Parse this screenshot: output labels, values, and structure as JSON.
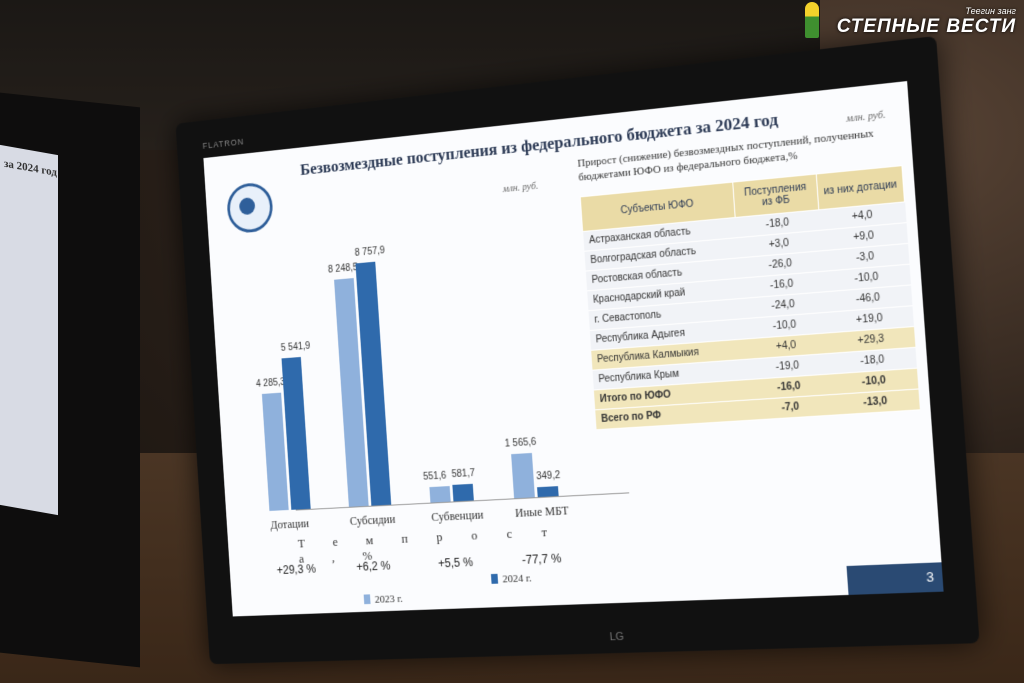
{
  "slide": {
    "title": "Безвозмездные поступления из федерального бюджета за 2024 год",
    "unit_left": "млн. руб.",
    "unit_right": "млн. руб.",
    "page_number": "3"
  },
  "chart_data": {
    "type": "bar",
    "categories": [
      "Дотации",
      "Субсидии",
      "Субвенции",
      "Иные МБТ"
    ],
    "series": [
      {
        "name": "2023 г.",
        "values": [
          4285.3,
          8248.5,
          551.6,
          1565.6
        ],
        "labels": [
          "4 285,3",
          "8 248,5",
          "551,6",
          "1 565,6"
        ],
        "color": "#8fb1dc"
      },
      {
        "name": "2024 г.",
        "values": [
          5541.9,
          8757.9,
          581.7,
          349.2
        ],
        "labels": [
          "5 541,9",
          "8 757,9",
          "581,7",
          "349,2"
        ],
        "color": "#2f6aac"
      }
    ],
    "ylim": [
      0,
      9000
    ],
    "growth_label": "Т е м п   р о с т а ,   %",
    "growth": [
      "+29,3 %",
      "+6,2 %",
      "+5,5 %",
      "-77,7 %"
    ]
  },
  "table": {
    "title": "Прирост (снижение) безвозмездных поступлений, полученных бюджетами ЮФО из федерального бюджета,%",
    "headers": [
      "Субъекты ЮФО",
      "Поступления из ФБ",
      "из них дотации"
    ],
    "rows": [
      [
        "Астраханская область",
        "-18,0",
        "+4,0"
      ],
      [
        "Волгоградская область",
        "+3,0",
        "+9,0"
      ],
      [
        "Ростовская область",
        "-26,0",
        "-3,0"
      ],
      [
        "Краснодарский край",
        "-16,0",
        "-10,0"
      ],
      [
        "г. Севастополь",
        "-24,0",
        "-46,0"
      ],
      [
        "Республика Адыгея",
        "-10,0",
        "+19,0"
      ],
      [
        "Республика Калмыкия",
        "+4,0",
        "+29,3"
      ],
      [
        "Республика Крым",
        "-19,0",
        "-18,0"
      ],
      [
        "Итого по ЮФО",
        "-16,0",
        "-10,0"
      ],
      [
        "Всего по РФ",
        "-7,0",
        "-13,0"
      ]
    ]
  },
  "monitor": {
    "brand": "FLATRON",
    "logo": "LG"
  },
  "watermark": {
    "top": "Теегин занг",
    "main": "СТЕПНЫЕ ВЕСТИ"
  },
  "left_screen": {
    "title": "за 2024 год"
  }
}
